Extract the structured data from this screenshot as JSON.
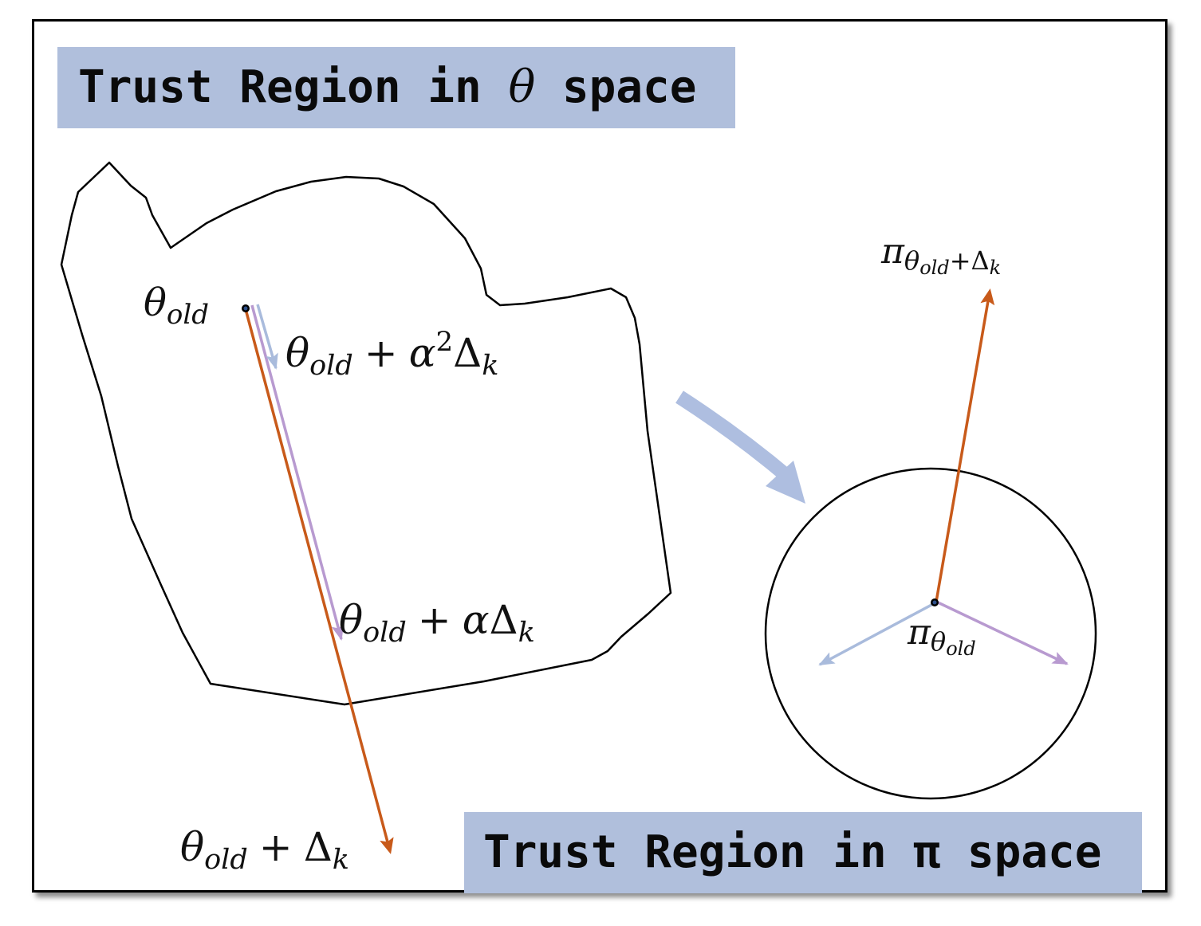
{
  "titles": {
    "theta_space_prefix": "Trust Region in ",
    "theta_space_symbol": "θ",
    "theta_space_suffix": " space",
    "pi_space": "Trust Region in π space"
  },
  "labels": {
    "theta_old": {
      "base": "θ",
      "sub": "old"
    },
    "theta_alpha2": {
      "base": "θ",
      "sub": "old",
      "op": "+",
      "coef": "α",
      "exp": "2",
      "delta": "Δ",
      "delta_sub": "k"
    },
    "theta_alpha": {
      "base": "θ",
      "sub": "old",
      "op": "+",
      "coef": "α",
      "delta": "Δ",
      "delta_sub": "k"
    },
    "theta_full": {
      "base": "θ",
      "sub": "old",
      "op": "+",
      "delta": "Δ",
      "delta_sub": "k"
    },
    "pi_new": {
      "base": "π",
      "sub_base": "θ",
      "sub_sub": "old",
      "sub_op": "+",
      "sub_delta": "Δ",
      "sub_delta_sub": "k"
    },
    "pi_old": {
      "base": "π",
      "sub_base": "θ",
      "sub_sub": "old"
    }
  },
  "colors": {
    "title_background": "#b0bfdc",
    "orange_arrow": "#c85a1a",
    "purple_arrow": "#b89ad0",
    "blue_arrow": "#a9bbdc",
    "mapping_arrow": "#aebee0",
    "outline": "#000000"
  }
}
